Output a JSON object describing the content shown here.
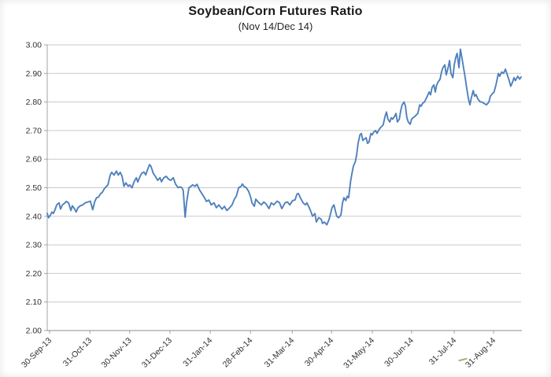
{
  "chart_data": {
    "type": "line",
    "title": "Soybean/Corn Futures Ratio",
    "subtitle": "(Nov 14/Dec 14)",
    "series_name": "Soybean/Corn futures ratio",
    "legend": "none",
    "grid": "horizontal",
    "ylim": [
      2.0,
      3.0
    ],
    "y_ticks": [
      "2.00",
      "2.10",
      "2.20",
      "2.30",
      "2.40",
      "2.50",
      "2.60",
      "2.70",
      "2.80",
      "2.90",
      "3.00"
    ],
    "x_ticks": [
      {
        "t": 0.005,
        "label": "30-Sep-13"
      },
      {
        "t": 0.09,
        "label": "31-Oct-13"
      },
      {
        "t": 0.174,
        "label": "30-Nov-13"
      },
      {
        "t": 0.259,
        "label": "31-Dec-13"
      },
      {
        "t": 0.344,
        "label": "31-Jan-14"
      },
      {
        "t": 0.429,
        "label": "28-Feb-14"
      },
      {
        "t": 0.517,
        "label": "31-Mar-14"
      },
      {
        "t": 0.6,
        "label": "30-Apr-14"
      },
      {
        "t": 0.686,
        "label": "31-May-14"
      },
      {
        "t": 0.769,
        "label": "30-Jun-14"
      },
      {
        "t": 0.859,
        "label": "31-Jul-14"
      },
      {
        "t": 0.942,
        "label": "31-Aug-14"
      }
    ],
    "points": [
      [
        0.0,
        2.41
      ],
      [
        0.003,
        2.395
      ],
      [
        0.007,
        2.405
      ],
      [
        0.01,
        2.415
      ],
      [
        0.013,
        2.41
      ],
      [
        0.017,
        2.425
      ],
      [
        0.02,
        2.44
      ],
      [
        0.025,
        2.447
      ],
      [
        0.028,
        2.425
      ],
      [
        0.032,
        2.44
      ],
      [
        0.036,
        2.445
      ],
      [
        0.04,
        2.452
      ],
      [
        0.045,
        2.447
      ],
      [
        0.05,
        2.42
      ],
      [
        0.053,
        2.437
      ],
      [
        0.058,
        2.425
      ],
      [
        0.061,
        2.415
      ],
      [
        0.065,
        2.43
      ],
      [
        0.07,
        2.437
      ],
      [
        0.075,
        2.44
      ],
      [
        0.08,
        2.447
      ],
      [
        0.086,
        2.45
      ],
      [
        0.091,
        2.453
      ],
      [
        0.096,
        2.423
      ],
      [
        0.1,
        2.45
      ],
      [
        0.104,
        2.465
      ],
      [
        0.108,
        2.467
      ],
      [
        0.113,
        2.48
      ],
      [
        0.116,
        2.483
      ],
      [
        0.12,
        2.495
      ],
      [
        0.124,
        2.503
      ],
      [
        0.128,
        2.51
      ],
      [
        0.133,
        2.545
      ],
      [
        0.136,
        2.554
      ],
      [
        0.141,
        2.544
      ],
      [
        0.146,
        2.558
      ],
      [
        0.15,
        2.544
      ],
      [
        0.154,
        2.554
      ],
      [
        0.158,
        2.54
      ],
      [
        0.162,
        2.505
      ],
      [
        0.166,
        2.517
      ],
      [
        0.171,
        2.505
      ],
      [
        0.174,
        2.51
      ],
      [
        0.179,
        2.5
      ],
      [
        0.183,
        2.52
      ],
      [
        0.188,
        2.535
      ],
      [
        0.191,
        2.52
      ],
      [
        0.196,
        2.54
      ],
      [
        0.199,
        2.55
      ],
      [
        0.204,
        2.555
      ],
      [
        0.208,
        2.545
      ],
      [
        0.211,
        2.56
      ],
      [
        0.216,
        2.581
      ],
      [
        0.219,
        2.575
      ],
      [
        0.224,
        2.55
      ],
      [
        0.228,
        2.54
      ],
      [
        0.233,
        2.526
      ],
      [
        0.238,
        2.535
      ],
      [
        0.241,
        2.521
      ],
      [
        0.246,
        2.535
      ],
      [
        0.251,
        2.54
      ],
      [
        0.256,
        2.53
      ],
      [
        0.261,
        2.526
      ],
      [
        0.266,
        2.535
      ],
      [
        0.271,
        2.512
      ],
      [
        0.276,
        2.5
      ],
      [
        0.281,
        2.503
      ],
      [
        0.284,
        2.5
      ],
      [
        0.287,
        2.49
      ],
      [
        0.291,
        2.397
      ],
      [
        0.294,
        2.447
      ],
      [
        0.299,
        2.5
      ],
      [
        0.302,
        2.503
      ],
      [
        0.307,
        2.51
      ],
      [
        0.312,
        2.505
      ],
      [
        0.316,
        2.512
      ],
      [
        0.321,
        2.494
      ],
      [
        0.326,
        2.48
      ],
      [
        0.331,
        2.467
      ],
      [
        0.336,
        2.452
      ],
      [
        0.341,
        2.457
      ],
      [
        0.346,
        2.44
      ],
      [
        0.352,
        2.447
      ],
      [
        0.357,
        2.43
      ],
      [
        0.362,
        2.44
      ],
      [
        0.369,
        2.425
      ],
      [
        0.374,
        2.435
      ],
      [
        0.379,
        2.42
      ],
      [
        0.385,
        2.43
      ],
      [
        0.39,
        2.44
      ],
      [
        0.395,
        2.46
      ],
      [
        0.399,
        2.47
      ],
      [
        0.404,
        2.5
      ],
      [
        0.409,
        2.505
      ],
      [
        0.412,
        2.513
      ],
      [
        0.415,
        2.505
      ],
      [
        0.42,
        2.5
      ],
      [
        0.425,
        2.487
      ],
      [
        0.429,
        2.468
      ],
      [
        0.432,
        2.447
      ],
      [
        0.437,
        2.435
      ],
      [
        0.44,
        2.46
      ],
      [
        0.445,
        2.45
      ],
      [
        0.452,
        2.44
      ],
      [
        0.457,
        2.45
      ],
      [
        0.462,
        2.443
      ],
      [
        0.468,
        2.427
      ],
      [
        0.473,
        2.447
      ],
      [
        0.478,
        2.44
      ],
      [
        0.485,
        2.453
      ],
      [
        0.49,
        2.448
      ],
      [
        0.495,
        2.427
      ],
      [
        0.502,
        2.447
      ],
      [
        0.507,
        2.45
      ],
      [
        0.512,
        2.44
      ],
      [
        0.518,
        2.455
      ],
      [
        0.523,
        2.457
      ],
      [
        0.527,
        2.478
      ],
      [
        0.53,
        2.48
      ],
      [
        0.535,
        2.462
      ],
      [
        0.54,
        2.447
      ],
      [
        0.545,
        2.44
      ],
      [
        0.548,
        2.447
      ],
      [
        0.553,
        2.43
      ],
      [
        0.556,
        2.418
      ],
      [
        0.56,
        2.4
      ],
      [
        0.565,
        2.41
      ],
      [
        0.568,
        2.38
      ],
      [
        0.573,
        2.395
      ],
      [
        0.578,
        2.39
      ],
      [
        0.581,
        2.375
      ],
      [
        0.585,
        2.38
      ],
      [
        0.59,
        2.37
      ],
      [
        0.595,
        2.39
      ],
      [
        0.598,
        2.41
      ],
      [
        0.601,
        2.43
      ],
      [
        0.605,
        2.44
      ],
      [
        0.608,
        2.42
      ],
      [
        0.611,
        2.4
      ],
      [
        0.615,
        2.395
      ],
      [
        0.62,
        2.405
      ],
      [
        0.623,
        2.445
      ],
      [
        0.626,
        2.465
      ],
      [
        0.63,
        2.455
      ],
      [
        0.633,
        2.47
      ],
      [
        0.636,
        2.465
      ],
      [
        0.64,
        2.52
      ],
      [
        0.643,
        2.55
      ],
      [
        0.646,
        2.575
      ],
      [
        0.65,
        2.59
      ],
      [
        0.653,
        2.615
      ],
      [
        0.656,
        2.655
      ],
      [
        0.66,
        2.685
      ],
      [
        0.663,
        2.69
      ],
      [
        0.666,
        2.665
      ],
      [
        0.669,
        2.67
      ],
      [
        0.673,
        2.675
      ],
      [
        0.676,
        2.655
      ],
      [
        0.679,
        2.66
      ],
      [
        0.683,
        2.69
      ],
      [
        0.686,
        2.685
      ],
      [
        0.689,
        2.695
      ],
      [
        0.693,
        2.7
      ],
      [
        0.696,
        2.69
      ],
      [
        0.699,
        2.7
      ],
      [
        0.703,
        2.71
      ],
      [
        0.706,
        2.715
      ],
      [
        0.709,
        2.72
      ],
      [
        0.713,
        2.75
      ],
      [
        0.716,
        2.765
      ],
      [
        0.719,
        2.74
      ],
      [
        0.723,
        2.73
      ],
      [
        0.726,
        2.745
      ],
      [
        0.729,
        2.74
      ],
      [
        0.733,
        2.75
      ],
      [
        0.736,
        2.76
      ],
      [
        0.739,
        2.73
      ],
      [
        0.743,
        2.74
      ],
      [
        0.746,
        2.77
      ],
      [
        0.749,
        2.79
      ],
      [
        0.753,
        2.8
      ],
      [
        0.756,
        2.785
      ],
      [
        0.759,
        2.745
      ],
      [
        0.762,
        2.73
      ],
      [
        0.766,
        2.722
      ],
      [
        0.769,
        2.74
      ],
      [
        0.772,
        2.745
      ],
      [
        0.776,
        2.75
      ],
      [
        0.779,
        2.755
      ],
      [
        0.782,
        2.76
      ],
      [
        0.786,
        2.79
      ],
      [
        0.789,
        2.785
      ],
      [
        0.792,
        2.795
      ],
      [
        0.796,
        2.8
      ],
      [
        0.799,
        2.81
      ],
      [
        0.802,
        2.82
      ],
      [
        0.806,
        2.835
      ],
      [
        0.809,
        2.825
      ],
      [
        0.812,
        2.85
      ],
      [
        0.816,
        2.86
      ],
      [
        0.819,
        2.835
      ],
      [
        0.822,
        2.86
      ],
      [
        0.825,
        2.87
      ],
      [
        0.829,
        2.88
      ],
      [
        0.832,
        2.905
      ],
      [
        0.835,
        2.92
      ],
      [
        0.839,
        2.93
      ],
      [
        0.842,
        2.895
      ],
      [
        0.846,
        2.92
      ],
      [
        0.849,
        2.945
      ],
      [
        0.852,
        2.9
      ],
      [
        0.856,
        2.885
      ],
      [
        0.859,
        2.93
      ],
      [
        0.862,
        2.955
      ],
      [
        0.865,
        2.97
      ],
      [
        0.869,
        2.92
      ],
      [
        0.872,
        2.985
      ],
      [
        0.875,
        2.955
      ],
      [
        0.879,
        2.915
      ],
      [
        0.882,
        2.885
      ],
      [
        0.885,
        2.85
      ],
      [
        0.889,
        2.81
      ],
      [
        0.892,
        2.79
      ],
      [
        0.895,
        2.815
      ],
      [
        0.899,
        2.84
      ],
      [
        0.902,
        2.82
      ],
      [
        0.905,
        2.826
      ],
      [
        0.909,
        2.81
      ],
      [
        0.914,
        2.8
      ],
      [
        0.917,
        2.8
      ],
      [
        0.922,
        2.795
      ],
      [
        0.927,
        2.79
      ],
      [
        0.932,
        2.8
      ],
      [
        0.935,
        2.82
      ],
      [
        0.94,
        2.83
      ],
      [
        0.943,
        2.835
      ],
      [
        0.947,
        2.86
      ],
      [
        0.952,
        2.9
      ],
      [
        0.955,
        2.89
      ],
      [
        0.959,
        2.905
      ],
      [
        0.963,
        2.9
      ],
      [
        0.967,
        2.915
      ],
      [
        0.972,
        2.89
      ],
      [
        0.975,
        2.875
      ],
      [
        0.978,
        2.855
      ],
      [
        0.982,
        2.87
      ],
      [
        0.985,
        2.885
      ],
      [
        0.988,
        2.875
      ],
      [
        0.993,
        2.89
      ],
      [
        0.997,
        2.88
      ],
      [
        1.0,
        2.888
      ]
    ]
  },
  "colors": {
    "line": "#4F81BD",
    "gridline": "#C9C9C9",
    "axis": "#A3A3A3",
    "tick_label": "#333333",
    "title": "#1A1A1A",
    "artifact_green": "#76A23E"
  }
}
